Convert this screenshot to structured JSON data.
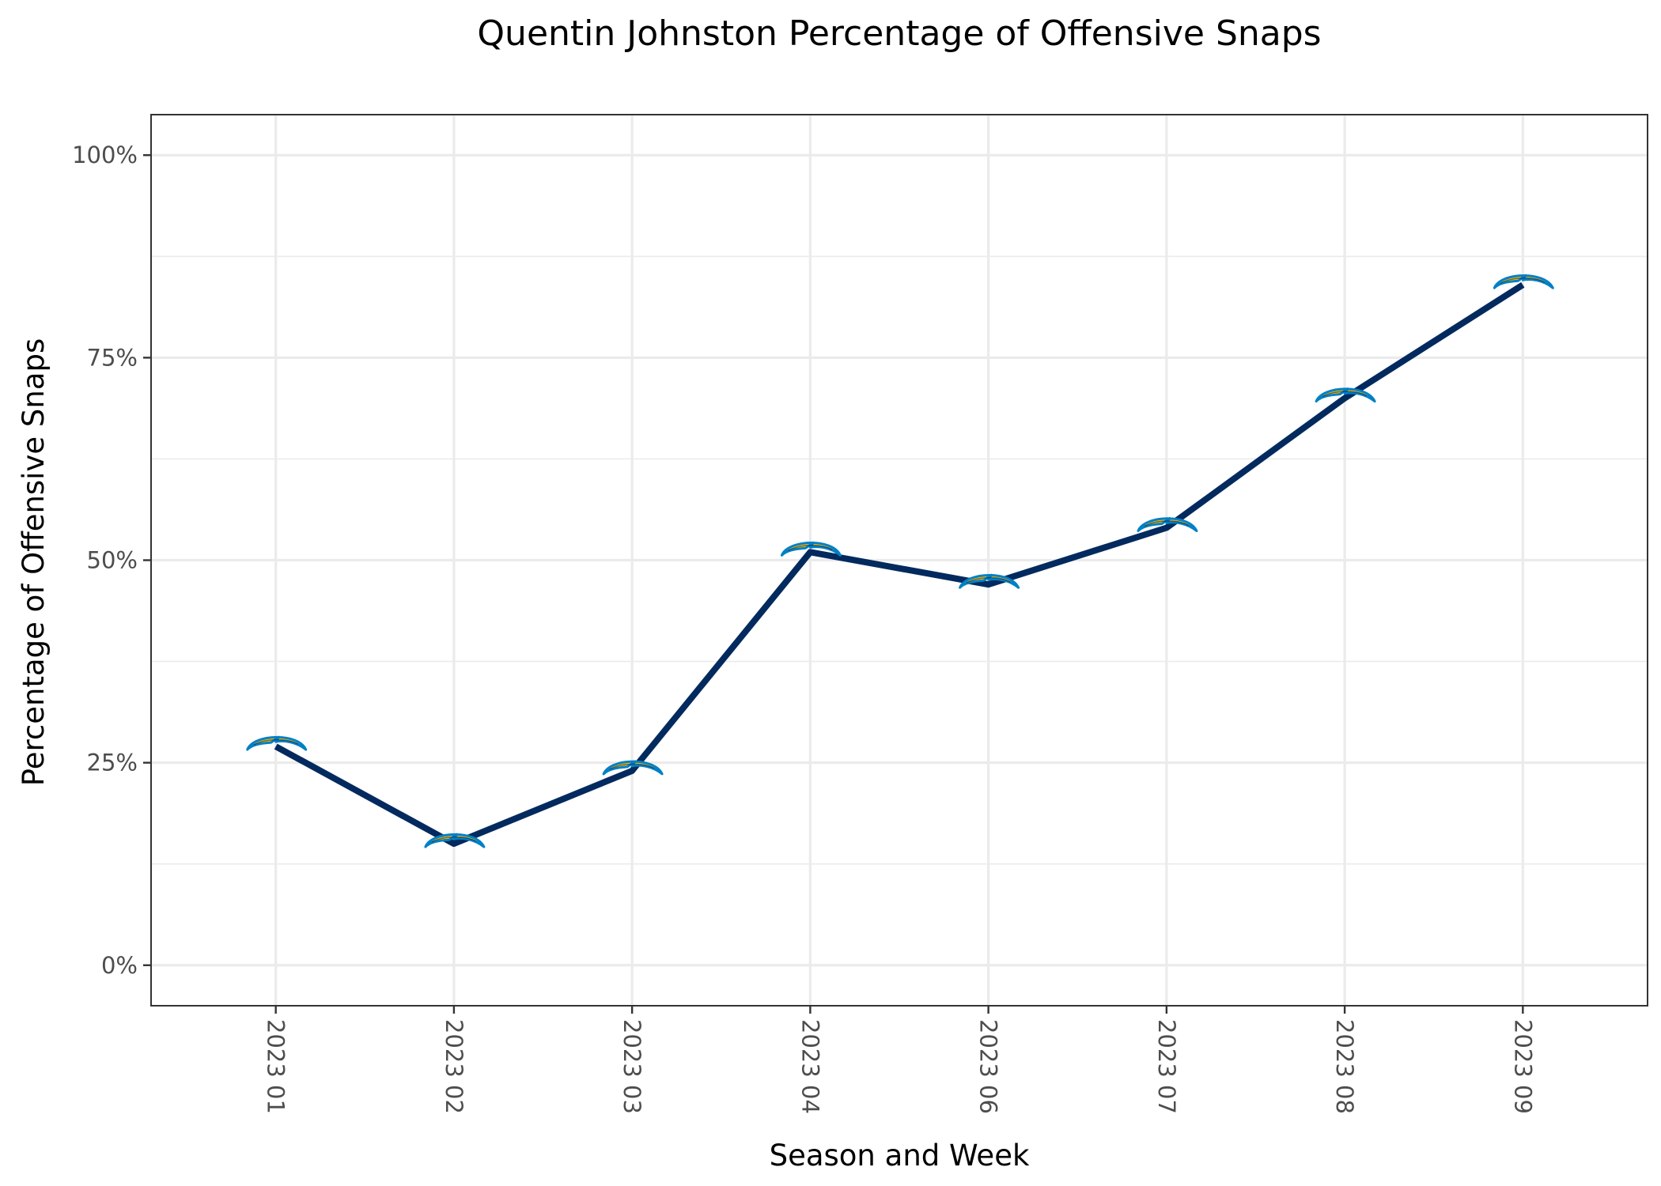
{
  "chart_data": {
    "type": "line",
    "title": "Quentin Johnston Percentage of Offensive Snaps",
    "xlabel": "Season and Week",
    "ylabel": "Percentage of Offensive Snaps",
    "categories": [
      "2023 01",
      "2023 02",
      "2023 03",
      "2023 04",
      "2023 06",
      "2023 07",
      "2023 08",
      "2023 09"
    ],
    "values": [
      0.27,
      0.15,
      0.24,
      0.51,
      0.47,
      0.54,
      0.7,
      0.84
    ],
    "ylim": [
      -0.05,
      1.05
    ],
    "y_ticks": [
      0,
      0.25,
      0.5,
      0.75,
      1.0
    ],
    "y_tick_labels": [
      "0%",
      "25%",
      "50%",
      "75%",
      "100%"
    ],
    "grid": true,
    "line_color": "#022a5e",
    "marker": "chargers-bolt-logo",
    "marker_colors": {
      "fill": "#ffc20e",
      "outline": "#0080c6"
    }
  }
}
